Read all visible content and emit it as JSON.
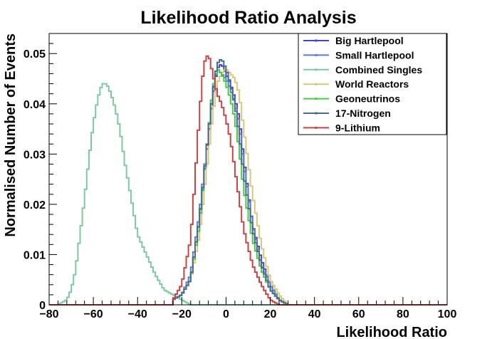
{
  "chart_data": {
    "type": "line",
    "style": "step-histogram",
    "title": "Likelihood Ratio Analysis",
    "xlabel": "Likelihood Ratio",
    "ylabel": "Normalised Number of Events",
    "xlim": [
      -80,
      100
    ],
    "ylim": [
      0,
      0.054
    ],
    "x_ticks": [
      "−80",
      "−60",
      "−40",
      "−20",
      "0",
      "20",
      "40",
      "60",
      "80",
      "100"
    ],
    "y_ticks": [
      "0",
      "0.01",
      "0.02",
      "0.03",
      "0.04",
      "0.05"
    ],
    "grid": false,
    "legend_position": "top-right",
    "series": [
      {
        "name": "Big Hartlepool",
        "color": "#4444cc",
        "x": [
          -24,
          -20,
          -16,
          -12,
          -8,
          -6,
          -4,
          -2,
          0,
          2,
          4,
          6,
          8,
          12,
          16,
          20,
          24,
          28
        ],
        "values": [
          0.001,
          0.002,
          0.005,
          0.017,
          0.033,
          0.041,
          0.047,
          0.048,
          0.046,
          0.044,
          0.041,
          0.037,
          0.029,
          0.016,
          0.009,
          0.004,
          0.001,
          0
        ]
      },
      {
        "name": "Small Hartlepool",
        "color": "#5b7bd0",
        "x": [
          -24,
          -20,
          -16,
          -12,
          -8,
          -6,
          -4,
          -2,
          0,
          2,
          4,
          6,
          8,
          12,
          16,
          20,
          24,
          28
        ],
        "values": [
          0.001,
          0.002,
          0.006,
          0.018,
          0.034,
          0.042,
          0.047,
          0.046,
          0.045,
          0.043,
          0.04,
          0.036,
          0.028,
          0.016,
          0.008,
          0.004,
          0.001,
          0
        ]
      },
      {
        "name": "Combined Singles",
        "color": "#7fc8a3",
        "x": [
          -76,
          -72,
          -70,
          -68,
          -66,
          -64,
          -62,
          -60,
          -58,
          -56,
          -54,
          -52,
          -50,
          -48,
          -46,
          -44,
          -42,
          -40,
          -36,
          -32,
          -28,
          -24,
          -20,
          -16
        ],
        "values": [
          0,
          0.001,
          0.003,
          0.007,
          0.014,
          0.021,
          0.029,
          0.036,
          0.041,
          0.044,
          0.044,
          0.042,
          0.039,
          0.035,
          0.029,
          0.024,
          0.019,
          0.014,
          0.01,
          0.006,
          0.003,
          0.002,
          0.001,
          0
        ]
      },
      {
        "name": "World Reactors",
        "color": "#d8c87a",
        "x": [
          -24,
          -20,
          -16,
          -12,
          -8,
          -6,
          -4,
          -2,
          0,
          2,
          4,
          6,
          8,
          12,
          16,
          20,
          24,
          28
        ],
        "values": [
          0.001,
          0.002,
          0.005,
          0.014,
          0.03,
          0.038,
          0.044,
          0.046,
          0.047,
          0.046,
          0.045,
          0.042,
          0.035,
          0.022,
          0.012,
          0.005,
          0.002,
          0
        ]
      },
      {
        "name": "Geoneutrinos",
        "color": "#44cc44",
        "x": [
          -24,
          -20,
          -16,
          -12,
          -8,
          -6,
          -4,
          -2,
          0,
          2,
          4,
          6,
          8,
          12,
          16,
          20,
          24,
          28
        ],
        "values": [
          0.001,
          0.002,
          0.005,
          0.016,
          0.034,
          0.043,
          0.047,
          0.046,
          0.044,
          0.041,
          0.037,
          0.031,
          0.023,
          0.013,
          0.007,
          0.003,
          0.001,
          0
        ]
      },
      {
        "name": "17-Nitrogen",
        "color": "#4c6a8a",
        "x": [
          -24,
          -20,
          -16,
          -12,
          -8,
          -6,
          -4,
          -2,
          0,
          2,
          4,
          6,
          8,
          12,
          16,
          20,
          24,
          28
        ],
        "values": [
          0.001,
          0.002,
          0.005,
          0.017,
          0.034,
          0.042,
          0.048,
          0.049,
          0.047,
          0.044,
          0.04,
          0.034,
          0.026,
          0.015,
          0.008,
          0.003,
          0.001,
          0
        ]
      },
      {
        "name": "9-Lithium",
        "color": "#c84444",
        "x": [
          -24,
          -20,
          -16,
          -14,
          -12,
          -10,
          -8,
          -6,
          -4,
          -2,
          0,
          2,
          4,
          6,
          8,
          12,
          16,
          20,
          24
        ],
        "values": [
          0.001,
          0.004,
          0.013,
          0.025,
          0.038,
          0.048,
          0.05,
          0.046,
          0.042,
          0.04,
          0.037,
          0.033,
          0.027,
          0.021,
          0.015,
          0.008,
          0.004,
          0.001,
          0
        ]
      }
    ]
  }
}
